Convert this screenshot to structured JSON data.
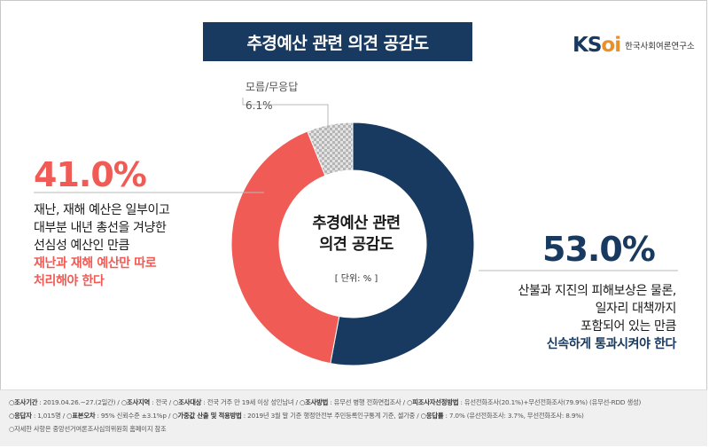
{
  "title": "추경예산 관련 의견 공감도",
  "logo": {
    "mark_main": "KS",
    "mark_accent": "oi",
    "text": "한국사회여론연구소"
  },
  "chart_data": {
    "type": "pie",
    "center_title_line1": "추경예산 관련",
    "center_title_line2": "의견 공감도",
    "unit": "[ 단위: % ]",
    "slices": [
      {
        "label": "신속하게 통과시켜야 한다",
        "value": 53.0,
        "display": "53.0%",
        "color": "#183a60"
      },
      {
        "label": "재난과 재해 예산만 따로 처리해야 한다",
        "value": 41.0,
        "display": "41.0%",
        "color": "#f15b55"
      },
      {
        "label": "모름/무응답",
        "value": 6.1,
        "display": "6.1%",
        "color": "#cccccc"
      }
    ]
  },
  "annotations": {
    "red": {
      "pct": "41.0%",
      "line1": "재난, 재해 예산은 일부이고",
      "line2": "대부분 내년 총선을 겨냥한",
      "line3": "선심성 예산인 만큼",
      "hl1": "재난과 재해 예산만 따로",
      "hl2": "처리해야 한다"
    },
    "navy": {
      "pct": "53.0%",
      "line1": "산불과 지진의 피해보상은 물론,",
      "line2": "일자리 대책까지",
      "line3": "포함되어 있는 만큼",
      "hl1": "신속하게 통과시켜야 한다"
    },
    "dk": {
      "label": "모름/무응답",
      "pct": "6.1%"
    }
  },
  "footer": {
    "l1": [
      {
        "k": "○조사기간",
        "v": " : 2019.04.26.~27.(2일간) / "
      },
      {
        "k": "○조사지역",
        "v": " : 전국 / "
      },
      {
        "k": "○조사대상",
        "v": " : 전국 거주 만 19세 이상 성인남녀 / "
      },
      {
        "k": "○조사방법",
        "v": " : 유무선 병행 전화면접조사 / "
      },
      {
        "k": "○피조사자선정방법",
        "v": " : 유선전화조사(20.1%)+무선전화조사(79.9%) (유무선-RDD 생성)"
      }
    ],
    "l2": [
      {
        "k": "○응답자",
        "v": " : 1,015명 / "
      },
      {
        "k": "○표본오차",
        "v": " : 95% 신뢰수준 ±3.1%p / "
      },
      {
        "k": "○가중값 산출 및 적용방법",
        "v": " : 2019년 3월 말 기준 행정안전부 주민등록인구통계 기준, 셀가중 / "
      },
      {
        "k": "○응답률",
        "v": " : 7.0% (유선전화조사: 3.7%, 무선전화조사: 8.9%)"
      }
    ],
    "l3": "○자세한 사항은 중앙선거여론조사심의위원회 홈페이지 참조"
  }
}
